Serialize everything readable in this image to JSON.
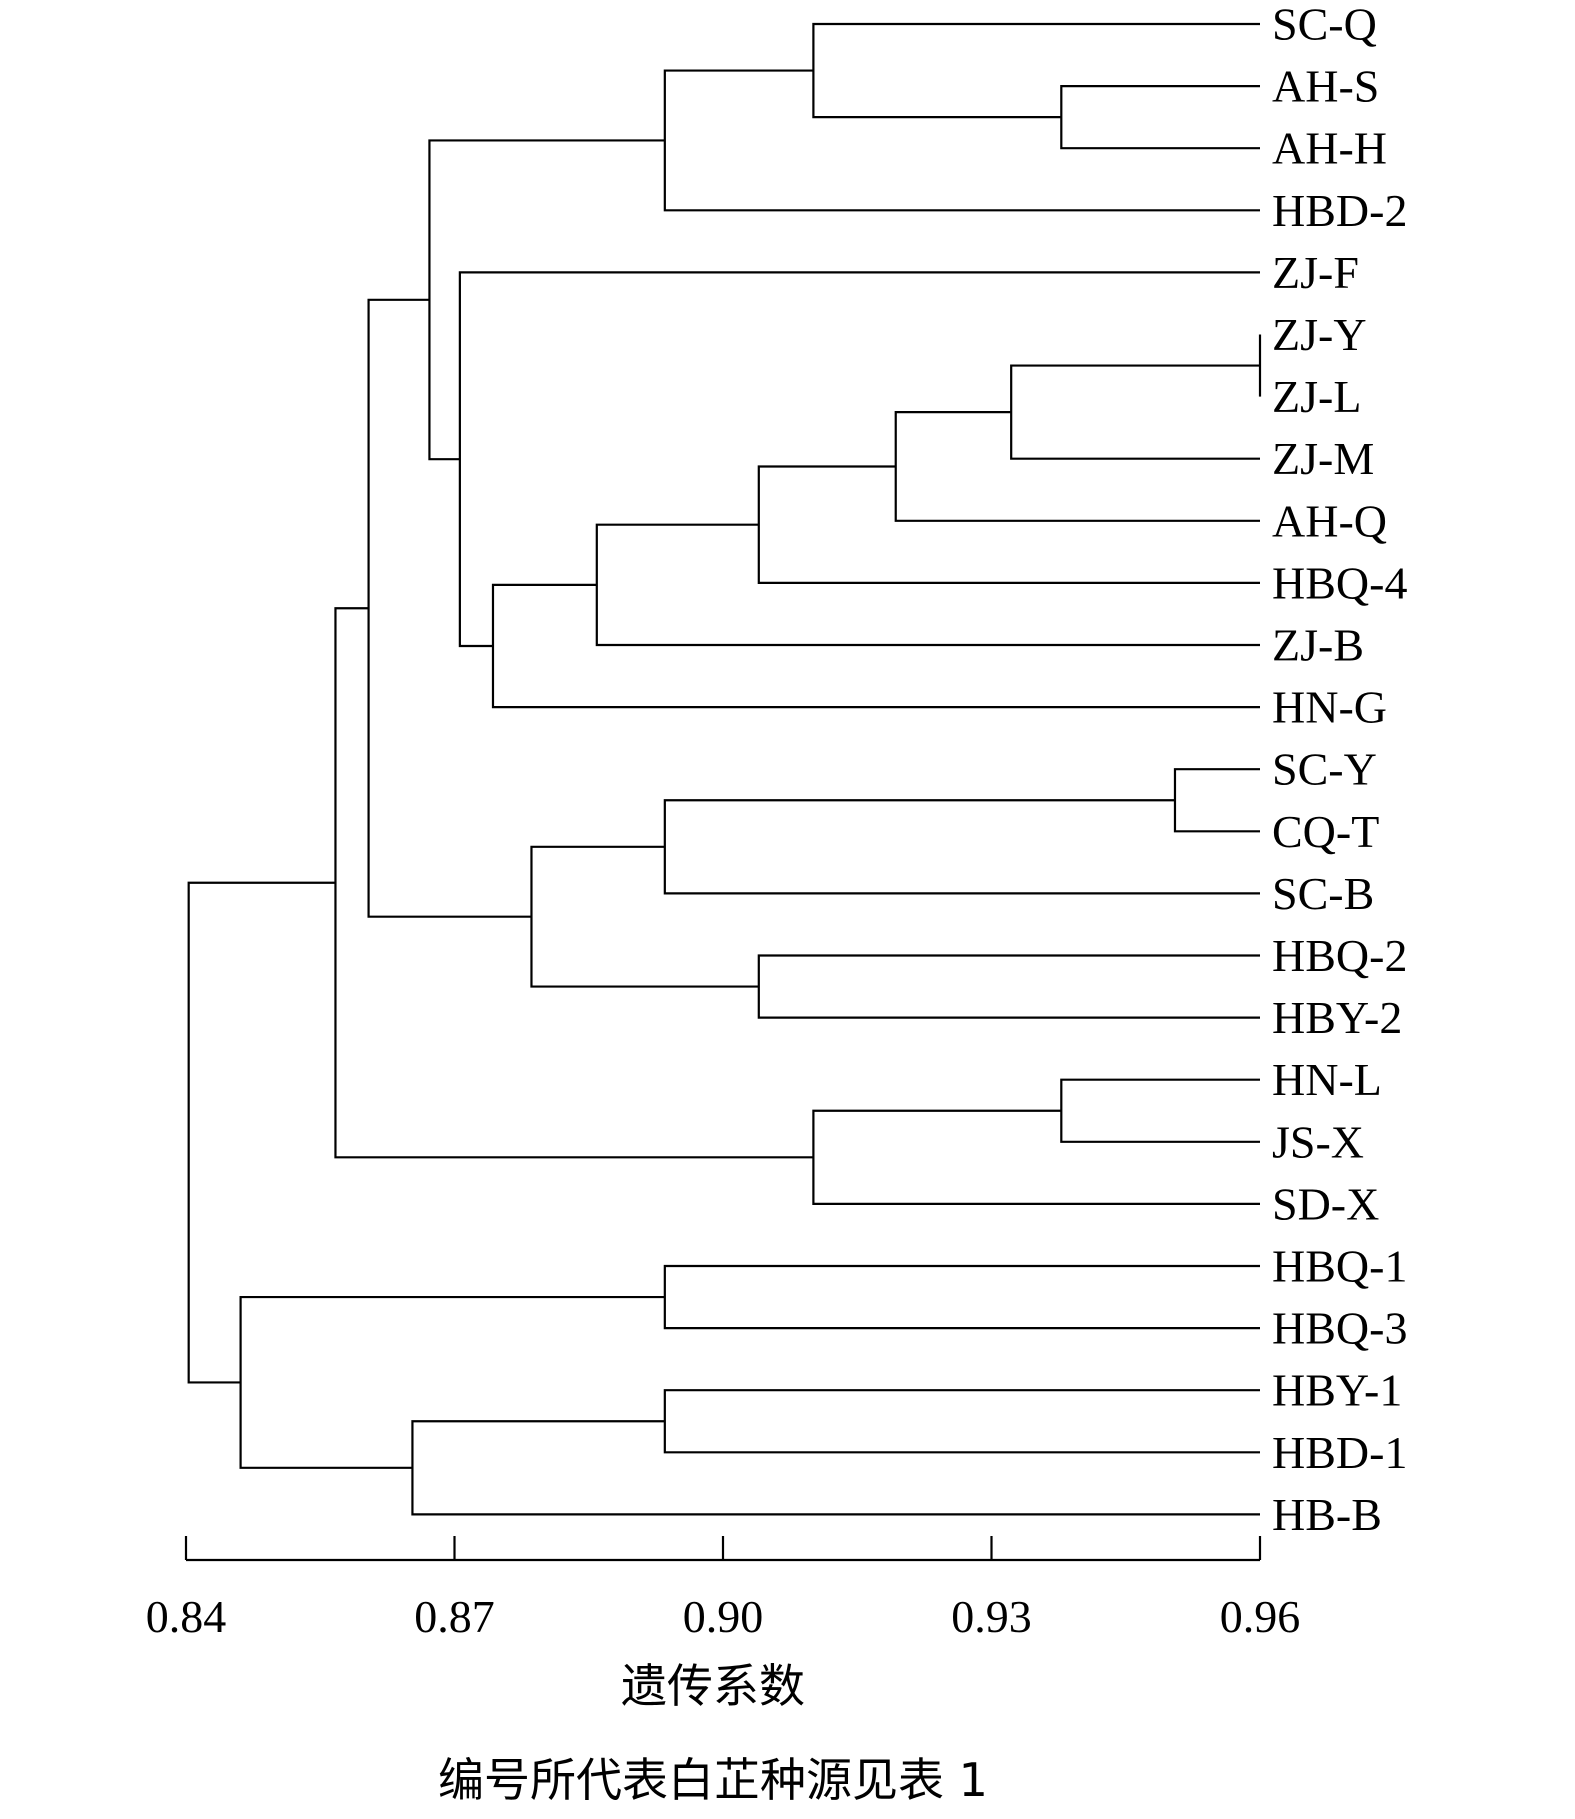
{
  "chart_data": {
    "type": "dendrogram",
    "xlabel": "遗传系数",
    "caption": "编号所代表白芷种源见表 1",
    "xlim": [
      0.84,
      0.96
    ],
    "ticks": [
      "0.84",
      "0.87",
      "0.90",
      "0.93",
      "0.96"
    ],
    "tick_values": [
      0.84,
      0.87,
      0.9,
      0.93,
      0.96
    ],
    "leaves": [
      "SC-Q",
      "AH-S",
      "AH-H",
      "HBD-2",
      "ZJ-F",
      "ZJ-Y",
      "ZJ-L",
      "ZJ-M",
      "AH-Q",
      "HBQ-4",
      "ZJ-B",
      "HN-G",
      "SC-Y",
      "CQ-T",
      "SC-B",
      "HBQ-2",
      "HBY-2",
      "HN-L",
      "JS-X",
      "SD-X",
      "HBQ-1",
      "HBQ-3",
      "HBY-1",
      "HBD-1",
      "HB-B"
    ],
    "merges": [
      {
        "a": "ZJ-Y",
        "b": "ZJ-L",
        "height": 0.96
      },
      {
        "a": "SC-Y",
        "b": "CQ-T",
        "height": 0.9505
      },
      {
        "a": "AH-S",
        "b": "AH-H",
        "height": 0.9378
      },
      {
        "a": "HN-L",
        "b": "JS-X",
        "height": 0.9378
      },
      {
        "a": "ZJ-Y|ZJ-L",
        "b": "ZJ-M",
        "height": 0.9322
      },
      {
        "a": "ZJ-Y|ZJ-L|ZJ-M",
        "b": "AH-Q",
        "height": 0.9193
      },
      {
        "a": "SC-Q",
        "b": "AH-S|AH-H",
        "height": 0.9101
      },
      {
        "a": "HN-L|JS-X",
        "b": "SD-X",
        "height": 0.9101
      },
      {
        "a": "ZJ-Y|ZJ-L|ZJ-M|AH-Q",
        "b": "HBQ-4",
        "height": 0.904
      },
      {
        "a": "HBQ-2",
        "b": "HBY-2",
        "height": 0.904
      },
      {
        "a": "SC-Y|CQ-T",
        "b": "SC-B",
        "height": 0.8935
      },
      {
        "a": "SC-Q|AH-S|AH-H",
        "b": "HBD-2",
        "height": 0.8935
      },
      {
        "a": "HBQ-1",
        "b": "HBQ-3",
        "height": 0.8935
      },
      {
        "a": "HBY-1",
        "b": "HBD-1",
        "height": 0.8935
      },
      {
        "a": "ZJ-Y|ZJ-L|ZJ-M|AH-Q|HBQ-4",
        "b": "ZJ-B",
        "height": 0.8859
      },
      {
        "a": "SC-Y|CQ-T|SC-B",
        "b": "HBQ-2|HBY-2",
        "height": 0.8786
      },
      {
        "a": "ZJ-Y|ZJ-L|ZJ-M|AH-Q|HBQ-4|ZJ-B",
        "b": "HN-G",
        "height": 0.8743
      },
      {
        "a": "ZJ-F",
        "b": "ZJ-Y|ZJ-L|ZJ-M|AH-Q|HBQ-4|ZJ-B|HN-G",
        "height": 0.8706
      },
      {
        "a": "SC-Q|AH-S|AH-H|HBD-2",
        "b": "ZJ-F|ZJ-Y|ZJ-L|ZJ-M|AH-Q|HBQ-4|ZJ-B|HN-G",
        "height": 0.8672
      },
      {
        "a": "HBY-1|HBD-1",
        "b": "HB-B",
        "height": 0.8653
      },
      {
        "a": "SC-Q|AH-S|AH-H|HBD-2|ZJ-F|ZJ-Y|ZJ-L|ZJ-M|AH-Q|HBQ-4|ZJ-B|HN-G",
        "b": "SC-Y|CQ-T|SC-B|HBQ-2|HBY-2",
        "height": 0.8604
      },
      {
        "a": "SC-Q|AH-S|AH-H|HBD-2|ZJ-F|ZJ-Y|ZJ-L|ZJ-M|AH-Q|HBQ-4|ZJ-B|HN-G|SC-Y|CQ-T|SC-B|HBQ-2|HBY-2",
        "b": "HN-L|JS-X|SD-X",
        "height": 0.8567
      },
      {
        "a": "HBQ-1|HBQ-3",
        "b": "HBY-1|HBD-1|HB-B",
        "height": 0.8461
      },
      {
        "a": "SC-Q|AH-S|AH-H|HBD-2|ZJ-F|ZJ-Y|ZJ-L|ZJ-M|AH-Q|HBQ-4|ZJ-B|HN-G|SC-Y|CQ-T|SC-B|HBQ-2|HBY-2|HN-L|JS-X|SD-X",
        "b": "HBQ-1|HBQ-3|HBY-1|HBD-1|HB-B",
        "height": 0.8403
      }
    ]
  }
}
